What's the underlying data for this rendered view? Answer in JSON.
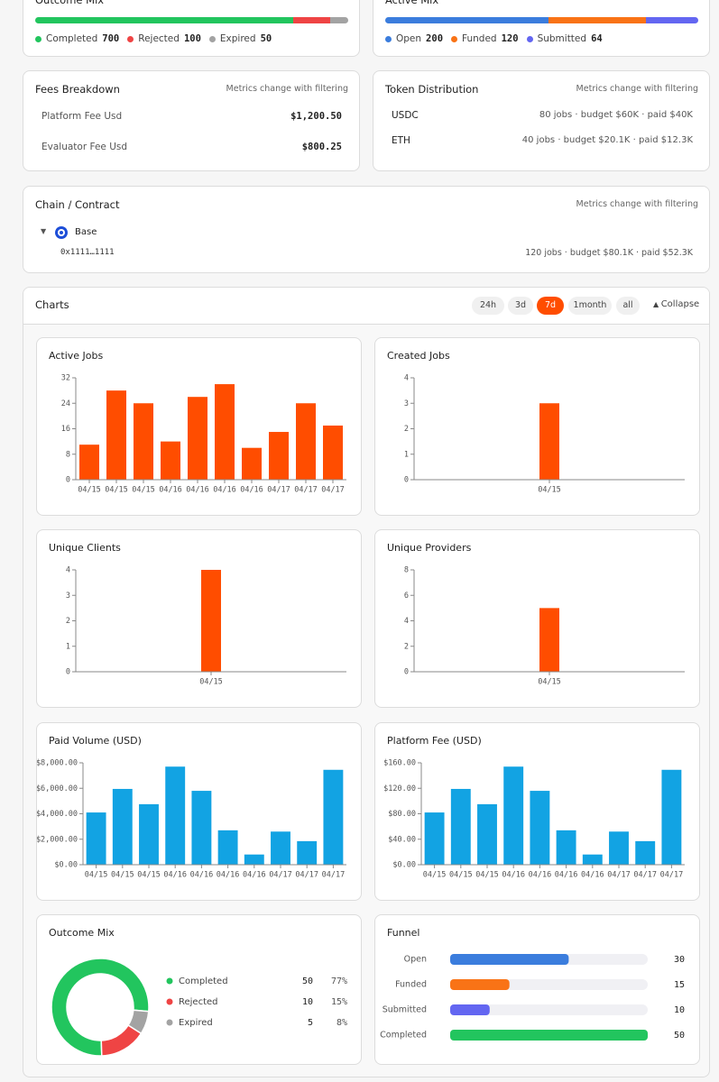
{
  "top_cards": [
    {
      "title": "Outcome Mix",
      "segments": [
        {
          "name": "Completed",
          "value": 700,
          "color": "#22c55e"
        },
        {
          "name": "Rejected",
          "value": 100,
          "color": "#ef4444"
        },
        {
          "name": "Expired",
          "value": 50,
          "color": "#a3a3a3"
        }
      ]
    },
    {
      "title": "Active Mix",
      "segments": [
        {
          "name": "Open",
          "value": 200,
          "color": "#3b7ddd"
        },
        {
          "name": "Funded",
          "value": 120,
          "color": "#f97316"
        },
        {
          "name": "Submitted",
          "value": 64,
          "color": "#6366f1"
        }
      ]
    }
  ],
  "fees": {
    "title": "Fees Breakdown",
    "note": "Metrics change with filtering",
    "rows": [
      {
        "label": "Platform Fee Usd",
        "value": "$1,200.50"
      },
      {
        "label": "Evaluator Fee Usd",
        "value": "$800.25"
      }
    ]
  },
  "tokens": {
    "title": "Token Distribution",
    "note": "Metrics change with filtering",
    "rows": [
      {
        "token": "USDC",
        "summary": "80 jobs · budget $60K · paid $40K"
      },
      {
        "token": "ETH",
        "summary": "40 jobs · budget $20.1K · paid $12.3K"
      }
    ]
  },
  "chain": {
    "title": "Chain / Contract",
    "note": "Metrics change with filtering",
    "chain": "Base",
    "contract": "0x1111…1111",
    "summary": "120 jobs · budget $80.1K · paid $52.3K"
  },
  "charts_panel": {
    "title": "Charts",
    "ranges": [
      "24h",
      "3d",
      "7d",
      "1month",
      "all"
    ],
    "active_range": "7d",
    "collapse": "Collapse"
  },
  "chart_data": [
    {
      "type": "bar",
      "title": "Active Jobs",
      "color": "#ff4d00",
      "categories": [
        "04/15",
        "04/15",
        "04/15",
        "04/16",
        "04/16",
        "04/16",
        "04/16",
        "04/17",
        "04/17",
        "04/17"
      ],
      "values": [
        11,
        28,
        24,
        12,
        26,
        30,
        10,
        15,
        24,
        17
      ],
      "ylim": [
        0,
        32
      ],
      "yticks": [
        0,
        8,
        16,
        24,
        32
      ]
    },
    {
      "type": "bar",
      "title": "Created Jobs",
      "color": "#ff4d00",
      "categories": [
        "04/15"
      ],
      "values": [
        3
      ],
      "ylim": [
        0,
        4
      ],
      "yticks": [
        0,
        1,
        2,
        3,
        4
      ]
    },
    {
      "type": "bar",
      "title": "Unique Clients",
      "color": "#ff4d00",
      "categories": [
        "04/15"
      ],
      "values": [
        4
      ],
      "ylim": [
        0,
        4
      ],
      "yticks": [
        0,
        1,
        2,
        3,
        4
      ]
    },
    {
      "type": "bar",
      "title": "Unique Providers",
      "color": "#ff4d00",
      "categories": [
        "04/15"
      ],
      "values": [
        5
      ],
      "ylim": [
        0,
        8
      ],
      "yticks": [
        0,
        2,
        4,
        6,
        8
      ]
    },
    {
      "type": "bar",
      "title": "Paid Volume (USD)",
      "color": "#12a3e3",
      "categories": [
        "04/15",
        "04/15",
        "04/15",
        "04/16",
        "04/16",
        "04/16",
        "04/16",
        "04/17",
        "04/17",
        "04/17"
      ],
      "values": [
        4100,
        5950,
        4750,
        7700,
        5800,
        2700,
        800,
        2600,
        1850,
        7450
      ],
      "ylim": [
        0,
        8000
      ],
      "yticks": [
        {
          "value": 0,
          "label": "$0.00"
        },
        {
          "value": 2000,
          "label": "$2,000.00"
        },
        {
          "value": 4000,
          "label": "$4,000.00"
        },
        {
          "value": 6000,
          "label": "$6,000.00"
        },
        {
          "value": 8000,
          "label": "$8,000.00"
        }
      ]
    },
    {
      "type": "bar",
      "title": "Platform Fee (USD)",
      "color": "#12a3e3",
      "categories": [
        "04/15",
        "04/15",
        "04/15",
        "04/16",
        "04/16",
        "04/16",
        "04/16",
        "04/17",
        "04/17",
        "04/17"
      ],
      "values": [
        82,
        119,
        95,
        154,
        116,
        54,
        16,
        52,
        37,
        149
      ],
      "ylim": [
        0,
        160
      ],
      "yticks": [
        {
          "value": 0,
          "label": "$0.00"
        },
        {
          "value": 40,
          "label": "$40.00"
        },
        {
          "value": 80,
          "label": "$80.00"
        },
        {
          "value": 120,
          "label": "$120.00"
        },
        {
          "value": 160,
          "label": "$160.00"
        }
      ]
    },
    {
      "type": "donut",
      "title": "Outcome Mix",
      "categories": [
        "Completed",
        "Rejected",
        "Expired"
      ],
      "values": [
        50,
        10,
        5
      ],
      "colors": [
        "#22c55e",
        "#ef4444",
        "#a3a3a3"
      ],
      "share_labels": [
        "77%",
        "15%",
        "8%"
      ]
    },
    {
      "type": "hbar",
      "title": "Funnel",
      "categories": [
        "Open",
        "Funded",
        "Submitted",
        "Completed"
      ],
      "values": [
        30,
        15,
        10,
        50
      ],
      "colors": [
        "#3b7ddd",
        "#f97316",
        "#6366f1",
        "#22c55e"
      ],
      "xlim": [
        0,
        50
      ]
    }
  ]
}
